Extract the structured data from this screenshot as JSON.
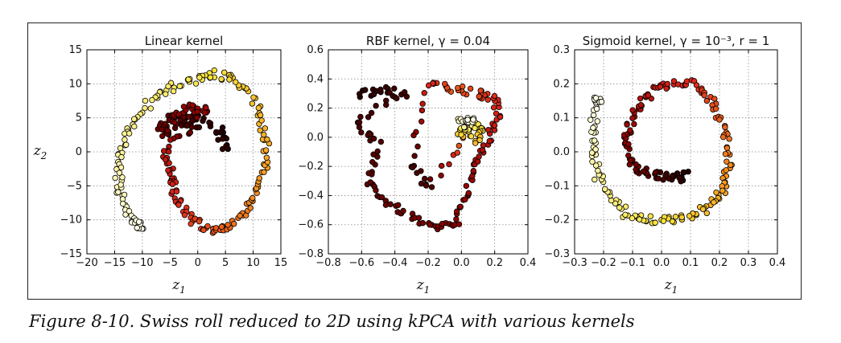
{
  "figure": {
    "caption": "Figure 8-10. Swiss roll reduced to 2D using kPCA with various kernels"
  },
  "chart_data": [
    {
      "type": "scatter",
      "title": "Linear kernel",
      "xlabel": "z1",
      "ylabel": "z2",
      "xlim": [
        -20,
        15
      ],
      "ylim": [
        -15,
        15
      ],
      "xticks": [
        "−20",
        "−15",
        "−10",
        "−5",
        "0",
        "5",
        "10",
        "15"
      ],
      "yticks": [
        "15",
        "10",
        "5",
        "0",
        "−5",
        "−10",
        "−15"
      ],
      "grid": true,
      "colormap": "hot",
      "color_stops": [
        "#1a0000",
        "#8b0000",
        "#e0281b",
        "#f58a1c",
        "#fbe43a",
        "#ffffe8"
      ],
      "points": [
        {
          "x": 4.5,
          "y": 3.5,
          "c": 0.02
        },
        {
          "x": 5.3,
          "y": 0.5,
          "c": 0.03
        },
        {
          "x": 2.0,
          "y": 4.5,
          "c": 0.05
        },
        {
          "x": -2.0,
          "y": 5.5,
          "c": 0.08
        },
        {
          "x": -5.0,
          "y": 5.0,
          "c": 0.12
        },
        {
          "x": -6.5,
          "y": 3.5,
          "c": 0.15
        },
        {
          "x": -5.5,
          "y": 2.5,
          "c": 0.14
        },
        {
          "x": -3.5,
          "y": 6.0,
          "c": 0.2
        },
        {
          "x": -1.0,
          "y": 6.5,
          "c": 0.22
        },
        {
          "x": 2.0,
          "y": 6.0,
          "c": 0.25
        },
        {
          "x": -4.0,
          "y": 4.0,
          "c": 0.1
        },
        {
          "x": 0.0,
          "y": 4.0,
          "c": 0.07
        },
        {
          "x": -6.0,
          "y": 0.5,
          "c": 0.3
        },
        {
          "x": -5.0,
          "y": -2.0,
          "c": 0.33
        },
        {
          "x": -4.5,
          "y": -5.0,
          "c": 0.36
        },
        {
          "x": -3.5,
          "y": -7.5,
          "c": 0.4
        },
        {
          "x": -1.0,
          "y": -10.0,
          "c": 0.44
        },
        {
          "x": 2.0,
          "y": -11.5,
          "c": 0.48
        },
        {
          "x": 5.0,
          "y": -11.0,
          "c": 0.52
        },
        {
          "x": 8.0,
          "y": -9.5,
          "c": 0.56
        },
        {
          "x": 10.5,
          "y": -6.5,
          "c": 0.6
        },
        {
          "x": 12.0,
          "y": -3.0,
          "c": 0.64
        },
        {
          "x": 12.5,
          "y": 1.0,
          "c": 0.67
        },
        {
          "x": 11.5,
          "y": 5.0,
          "c": 0.7
        },
        {
          "x": 9.0,
          "y": 9.0,
          "c": 0.74
        },
        {
          "x": 6.0,
          "y": 11.0,
          "c": 0.77
        },
        {
          "x": 2.5,
          "y": 11.5,
          "c": 0.8
        },
        {
          "x": -1.0,
          "y": 10.5,
          "c": 0.82
        },
        {
          "x": -5.0,
          "y": 9.5,
          "c": 0.85
        },
        {
          "x": -8.5,
          "y": 7.5,
          "c": 0.87
        },
        {
          "x": -11.5,
          "y": 4.5,
          "c": 0.89
        },
        {
          "x": -13.5,
          "y": 1.0,
          "c": 0.91
        },
        {
          "x": -14.5,
          "y": -3.0,
          "c": 0.93
        },
        {
          "x": -14.0,
          "y": -6.0,
          "c": 0.95
        },
        {
          "x": -12.5,
          "y": -9.0,
          "c": 0.97
        },
        {
          "x": -10.5,
          "y": -10.8,
          "c": 1.0
        }
      ]
    },
    {
      "type": "scatter",
      "title": "RBF kernel, γ = 0.04",
      "xlabel": "z1",
      "ylabel": "",
      "xlim": [
        -0.8,
        0.4
      ],
      "ylim": [
        -0.8,
        0.6
      ],
      "xticks": [
        "−0.8",
        "−0.6",
        "−0.4",
        "−0.2",
        "0.0",
        "0.2",
        "0.4"
      ],
      "yticks": [
        "0.6",
        "0.4",
        "0.2",
        "0.0",
        "−0.2",
        "−0.4",
        "−0.6",
        "−0.8"
      ],
      "grid": true,
      "colormap": "hot",
      "color_stops": [
        "#1a0000",
        "#8b0000",
        "#e0281b",
        "#f58a1c",
        "#fbe43a",
        "#ffffe8"
      ],
      "points": [
        {
          "x": -0.62,
          "y": 0.3,
          "c": 0.03
        },
        {
          "x": -0.48,
          "y": 0.32,
          "c": 0.05
        },
        {
          "x": -0.35,
          "y": 0.3,
          "c": 0.07
        },
        {
          "x": -0.62,
          "y": 0.1,
          "c": 0.09
        },
        {
          "x": -0.5,
          "y": -0.05,
          "c": 0.1
        },
        {
          "x": -0.55,
          "y": -0.3,
          "c": 0.12
        },
        {
          "x": -0.45,
          "y": -0.45,
          "c": 0.14
        },
        {
          "x": -0.3,
          "y": -0.55,
          "c": 0.16
        },
        {
          "x": -0.15,
          "y": -0.62,
          "c": 0.18
        },
        {
          "x": -0.02,
          "y": -0.58,
          "c": 0.2
        },
        {
          "x": 0.02,
          "y": -0.4,
          "c": 0.22
        },
        {
          "x": 0.08,
          "y": -0.2,
          "c": 0.25
        },
        {
          "x": 0.15,
          "y": -0.05,
          "c": 0.3
        },
        {
          "x": 0.22,
          "y": 0.12,
          "c": 0.35
        },
        {
          "x": 0.2,
          "y": 0.27,
          "c": 0.4
        },
        {
          "x": 0.1,
          "y": 0.3,
          "c": 0.45
        },
        {
          "x": -0.05,
          "y": 0.33,
          "c": 0.5
        },
        {
          "x": -0.2,
          "y": 0.36,
          "c": 0.38
        },
        {
          "x": -0.3,
          "y": -0.2,
          "c": 0.08
        },
        {
          "x": -0.2,
          "y": -0.35,
          "c": 0.1
        },
        {
          "x": 0.05,
          "y": 0.05,
          "c": 0.6
        },
        {
          "x": 0.0,
          "y": 0.02,
          "c": 0.75
        },
        {
          "x": 0.03,
          "y": 0.08,
          "c": 0.85
        },
        {
          "x": 0.08,
          "y": 0.1,
          "c": 0.9
        },
        {
          "x": 0.12,
          "y": 0.05,
          "c": 0.8
        },
        {
          "x": 0.1,
          "y": -0.03,
          "c": 0.7
        },
        {
          "x": -0.02,
          "y": 0.1,
          "c": 0.95
        },
        {
          "x": 0.05,
          "y": 0.12,
          "c": 1.0
        }
      ]
    },
    {
      "type": "scatter",
      "title": "Sigmoid kernel, γ = 10⁻³, r = 1",
      "xlabel": "z1",
      "ylabel": "",
      "xlim": [
        -0.3,
        0.4
      ],
      "ylim": [
        -0.3,
        0.3
      ],
      "xticks": [
        "−0.3",
        "−0.2",
        "−0.1",
        "0.0",
        "0.1",
        "0.2",
        "0.3",
        "0.4"
      ],
      "yticks": [
        "0.3",
        "0.2",
        "0.1",
        "0.0",
        "−0.1",
        "−0.2",
        "−0.3"
      ],
      "grid": true,
      "colormap": "hot",
      "color_stops": [
        "#1a0000",
        "#8b0000",
        "#e0281b",
        "#f58a1c",
        "#fbe43a",
        "#ffffe8"
      ],
      "points": [
        {
          "x": 0.08,
          "y": -0.06,
          "c": 0.02
        },
        {
          "x": 0.05,
          "y": -0.08,
          "c": 0.04
        },
        {
          "x": 0.0,
          "y": -0.07,
          "c": 0.08
        },
        {
          "x": -0.05,
          "y": -0.06,
          "c": 0.12
        },
        {
          "x": -0.1,
          "y": -0.04,
          "c": 0.16
        },
        {
          "x": -0.12,
          "y": 0.02,
          "c": 0.2
        },
        {
          "x": -0.11,
          "y": 0.08,
          "c": 0.24
        },
        {
          "x": -0.08,
          "y": 0.14,
          "c": 0.28
        },
        {
          "x": -0.03,
          "y": 0.18,
          "c": 0.32
        },
        {
          "x": 0.03,
          "y": 0.2,
          "c": 0.36
        },
        {
          "x": 0.1,
          "y": 0.2,
          "c": 0.4
        },
        {
          "x": 0.16,
          "y": 0.17,
          "c": 0.45
        },
        {
          "x": 0.2,
          "y": 0.1,
          "c": 0.5
        },
        {
          "x": 0.23,
          "y": 0.03,
          "c": 0.55
        },
        {
          "x": 0.23,
          "y": -0.05,
          "c": 0.6
        },
        {
          "x": 0.21,
          "y": -0.11,
          "c": 0.65
        },
        {
          "x": 0.17,
          "y": -0.16,
          "c": 0.7
        },
        {
          "x": 0.1,
          "y": -0.19,
          "c": 0.74
        },
        {
          "x": 0.02,
          "y": -0.2,
          "c": 0.78
        },
        {
          "x": -0.05,
          "y": -0.2,
          "c": 0.82
        },
        {
          "x": -0.12,
          "y": -0.18,
          "c": 0.85
        },
        {
          "x": -0.18,
          "y": -0.13,
          "c": 0.88
        },
        {
          "x": -0.22,
          "y": -0.07,
          "c": 0.91
        },
        {
          "x": -0.24,
          "y": 0.0,
          "c": 0.94
        },
        {
          "x": -0.24,
          "y": 0.07,
          "c": 0.97
        },
        {
          "x": -0.22,
          "y": 0.15,
          "c": 1.0
        }
      ]
    }
  ]
}
